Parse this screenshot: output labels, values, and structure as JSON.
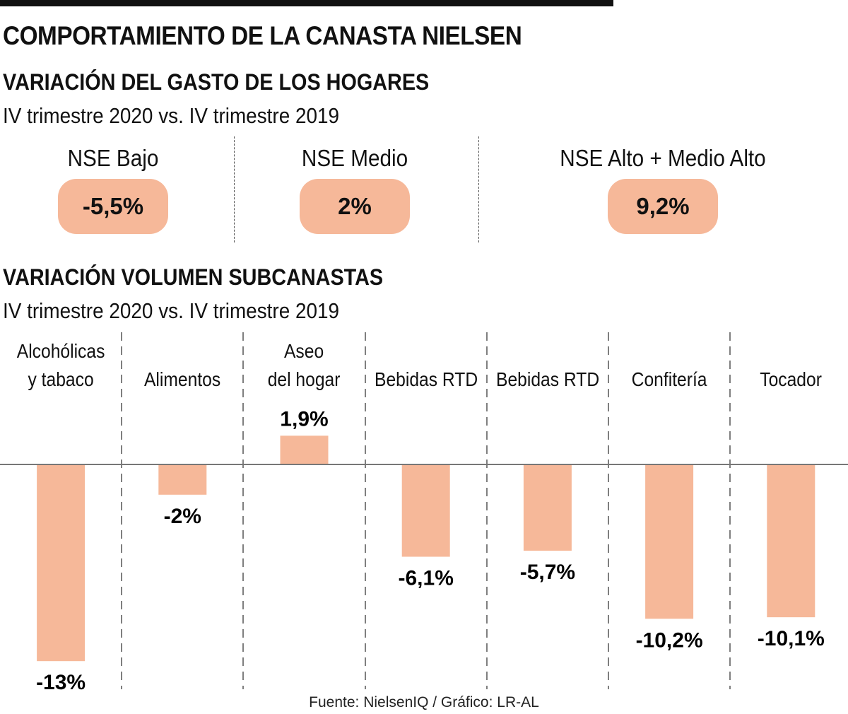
{
  "title": "COMPORTAMIENTO DE LA CANASTA NIELSEN",
  "section1": {
    "heading": "VARIACIÓN DEL GASTO DE LOS HOGARES",
    "subheading": "IV trimestre 2020 vs. IV trimestre 2019",
    "items": [
      {
        "label": "NSE Bajo",
        "value": "-5,5%"
      },
      {
        "label": "NSE Medio",
        "value": "2%"
      },
      {
        "label": "NSE Alto + Medio Alto",
        "value": "9,2%"
      }
    ]
  },
  "section2": {
    "heading": "VARIACIÓN VOLUMEN SUBCANASTAS",
    "subheading": "IV trimestre 2020 vs. IV trimestre 2019"
  },
  "chart_data": {
    "type": "bar",
    "title": "VARIACIÓN VOLUMEN SUBCANASTAS",
    "subtitle": "IV trimestre 2020 vs. IV trimestre 2019",
    "categories": [
      [
        "Alcohólicas",
        "y tabaco"
      ],
      [
        "Alimentos"
      ],
      [
        "Aseo",
        "del hogar"
      ],
      [
        "Bebidas RTD"
      ],
      [
        "Bebidas RTD"
      ],
      [
        "Confitería"
      ],
      [
        "Tocador"
      ]
    ],
    "values": [
      -13,
      -2,
      1.9,
      -6.1,
      -5.7,
      -10.2,
      -10.1
    ],
    "value_labels": [
      "-13%",
      "-2%",
      "1,9%",
      "-6,1%",
      "-5,7%",
      "-10,2%",
      "-10,1%"
    ],
    "xlabel": "",
    "ylabel": "",
    "unit": "%",
    "grid": false,
    "bar_color": "#f6b899",
    "baseline_color": "#777777"
  },
  "source": "Fuente: NielsenIQ / Gráfico: LR-AL"
}
